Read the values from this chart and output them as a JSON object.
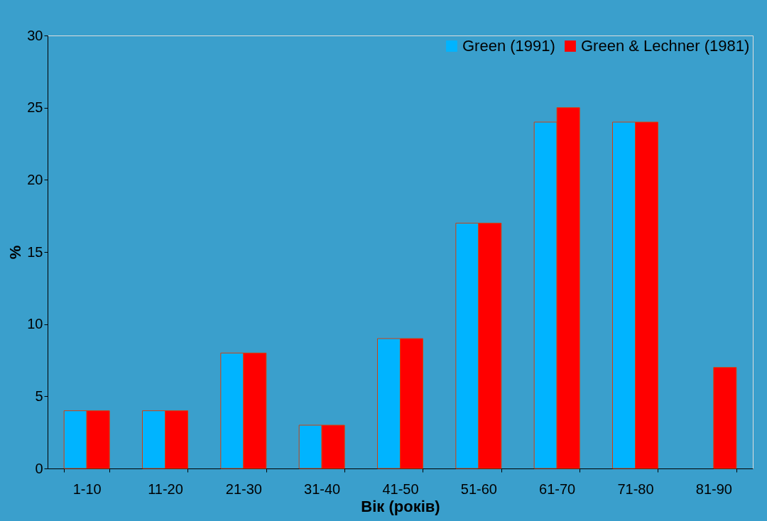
{
  "chart_data": {
    "type": "bar",
    "xlabel": "Вік (років)",
    "ylabel": "%",
    "categories": [
      "1-10",
      "11-20",
      "21-30",
      "31-40",
      "41-50",
      "51-60",
      "61-70",
      "71-80",
      "81-90"
    ],
    "series": [
      {
        "name": "Green (1991)",
        "color": "#00b4ff",
        "values": [
          4,
          4,
          8,
          3,
          9,
          17,
          24,
          24,
          null
        ]
      },
      {
        "name": "Green & Lechner (1981)",
        "color": "#ff0000",
        "values": [
          4,
          4,
          8,
          3,
          9,
          17,
          25,
          24,
          7
        ]
      }
    ],
    "ylim": [
      0,
      30
    ],
    "yticks": [
      0,
      5,
      10,
      15,
      20,
      25,
      30
    ],
    "grid": false,
    "legend": "top right"
  }
}
